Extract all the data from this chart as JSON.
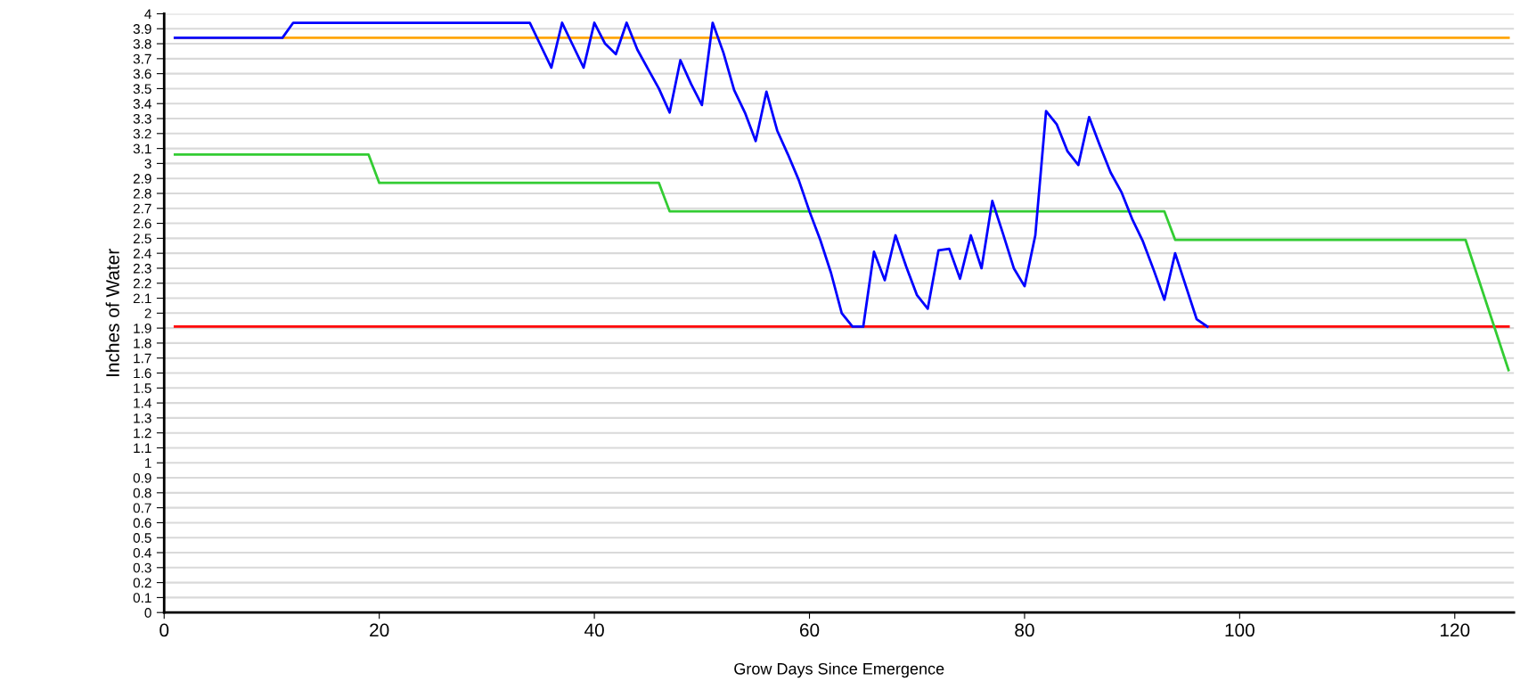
{
  "chart_data": {
    "type": "line",
    "xlabel": "Grow Days Since Emergence",
    "ylabel": "Inches of Water",
    "xlim": [
      0,
      125.5
    ],
    "xticks": [
      0,
      20,
      40,
      60,
      80,
      100,
      120
    ],
    "ylim": [
      0,
      4
    ],
    "yticks": [
      0,
      0.1,
      0.2,
      0.3,
      0.4,
      0.5,
      0.6,
      0.7,
      0.8,
      0.9,
      1,
      1.1,
      1.2,
      1.3,
      1.4,
      1.5,
      1.6,
      1.7,
      1.8,
      1.9,
      2,
      2.1,
      2.2,
      2.3,
      2.4,
      2.5,
      2.6,
      2.7,
      2.8,
      2.9,
      3,
      3.1,
      3.2,
      3.3,
      3.4,
      3.5,
      3.6,
      3.7,
      3.8,
      3.9,
      4
    ],
    "grid": "y",
    "marker": "none",
    "line_style": "solid",
    "series": [
      {
        "color": "#ffa500",
        "x": [
          1,
          125
        ],
        "values": [
          3.84,
          3.84
        ]
      },
      {
        "color": "#ff0000",
        "x": [
          1,
          125
        ],
        "values": [
          1.91,
          1.91
        ]
      },
      {
        "color": "#33cc33",
        "x": [
          1,
          19,
          20,
          46,
          47,
          93,
          94,
          121,
          125
        ],
        "values": [
          3.06,
          3.06,
          2.87,
          2.87,
          2.68,
          2.68,
          2.49,
          2.49,
          1.62
        ]
      },
      {
        "color": "#0000ff",
        "x": [
          1,
          11,
          12,
          34,
          35,
          36,
          37,
          38,
          39,
          40,
          41,
          42,
          43,
          44,
          45,
          46,
          47,
          48,
          49,
          50,
          51,
          52,
          53,
          54,
          55,
          56,
          57,
          58,
          59,
          60,
          61,
          62,
          63,
          64,
          65,
          66,
          67,
          68,
          69,
          70,
          71,
          72,
          73,
          74,
          75,
          76,
          77,
          78,
          79,
          80,
          81,
          82,
          83,
          84,
          85,
          86,
          87,
          88,
          89,
          90,
          91,
          92,
          93,
          94,
          95,
          96,
          97
        ],
        "values": [
          3.84,
          3.84,
          3.94,
          3.94,
          3.79,
          3.64,
          3.94,
          3.79,
          3.64,
          3.94,
          3.8,
          3.73,
          3.94,
          3.76,
          3.63,
          3.5,
          3.34,
          3.69,
          3.53,
          3.39,
          3.94,
          3.74,
          3.49,
          3.34,
          3.15,
          3.48,
          3.22,
          3.06,
          2.89,
          2.68,
          2.49,
          2.27,
          2.0,
          1.91,
          1.91,
          2.41,
          2.22,
          2.52,
          2.31,
          2.12,
          2.03,
          2.42,
          2.43,
          2.23,
          2.52,
          2.3,
          2.75,
          2.53,
          2.3,
          2.18,
          2.52,
          3.35,
          3.26,
          3.08,
          2.99,
          3.31,
          3.12,
          2.94,
          2.81,
          2.63,
          2.48,
          2.29,
          2.09,
          2.4,
          2.18,
          1.96,
          1.91
        ]
      }
    ]
  }
}
